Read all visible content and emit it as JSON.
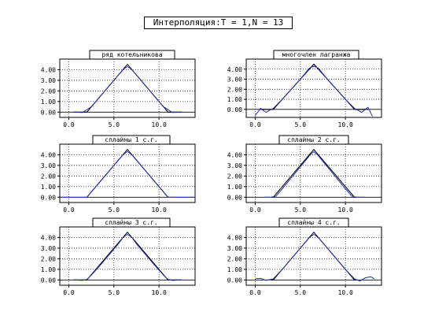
{
  "window": {
    "title": "Интерполяция:T = 1,N = 13"
  },
  "colors": {
    "background": "#ffffff",
    "frame": "#000000",
    "interpolant": "#1f2fb0",
    "reference": "#000000",
    "grid": "#000000"
  },
  "chart_data": [
    {
      "type": "line",
      "title": "ряд котельникова",
      "xlim": [
        -1,
        14
      ],
      "ylim": [
        -0.5,
        5
      ],
      "xticks": [
        0,
        5,
        10
      ],
      "xtick_labels": [
        "0.0",
        "5.0",
        "10.0"
      ],
      "yticks": [
        0,
        1,
        2,
        3,
        4
      ],
      "ytick_labels": [
        "0.00",
        "1.00",
        "2.00",
        "3.00",
        "4.00"
      ],
      "grid": "dotted",
      "series": [
        {
          "role": "reference",
          "x": [
            0.5,
            1.8,
            2.0,
            6.5,
            11.0,
            11.2,
            12.5
          ],
          "y": [
            0,
            0,
            0,
            4.5,
            0,
            0,
            0
          ]
        },
        {
          "role": "interpolant",
          "x": [
            0.5,
            1.5,
            2.5,
            3.5,
            4.5,
            5.5,
            6.0,
            6.5,
            7.0,
            7.5,
            8.5,
            9.5,
            10.5,
            11.5,
            12.5
          ],
          "y": [
            0,
            -0.04,
            0.5,
            1.5,
            2.5,
            3.5,
            4.0,
            4.3,
            4.0,
            3.5,
            2.5,
            1.5,
            0.5,
            -0.04,
            0
          ]
        }
      ]
    },
    {
      "type": "line",
      "title": "многочлен лагранжа",
      "xlim": [
        -1,
        14
      ],
      "ylim": [
        -0.8,
        5
      ],
      "xticks": [
        0,
        5,
        10
      ],
      "xtick_labels": [
        "0.0",
        "5.0",
        "10.0"
      ],
      "yticks": [
        0,
        1,
        2,
        3,
        4
      ],
      "ytick_labels": [
        "0.00",
        "1.00",
        "2.00",
        "3.00",
        "4.00"
      ],
      "grid": "dotted",
      "series": [
        {
          "role": "reference",
          "x": [
            0.5,
            1.8,
            2.0,
            6.5,
            11.0,
            11.2,
            12.5
          ],
          "y": [
            0,
            0,
            0,
            4.5,
            0,
            0,
            0
          ]
        },
        {
          "role": "interpolant",
          "x": [
            0,
            0.6,
            1.2,
            2.0,
            3.0,
            4.0,
            5.0,
            6.0,
            6.5,
            7.0,
            8.0,
            9.0,
            10.0,
            11.0,
            11.8,
            12.5,
            13.0
          ],
          "y": [
            -0.6,
            0.1,
            -0.3,
            0.1,
            1.0,
            2.0,
            3.0,
            4.1,
            4.3,
            4.1,
            3.0,
            2.0,
            1.0,
            0.1,
            -0.3,
            0.2,
            -0.7
          ]
        }
      ]
    },
    {
      "type": "line",
      "title": "сплайны 1 с.г.",
      "xlim": [
        -1,
        14
      ],
      "ylim": [
        -0.5,
        5
      ],
      "xticks": [
        0,
        5,
        10
      ],
      "xtick_labels": [
        "0.0",
        "5.0",
        "10.0"
      ],
      "yticks": [
        0,
        1,
        2,
        3,
        4
      ],
      "ytick_labels": [
        "0.00",
        "1.00",
        "2.00",
        "3.00",
        "4.00"
      ],
      "grid": "dotted",
      "series": [
        {
          "role": "reference",
          "x": [
            2.0,
            6.5,
            11.0
          ],
          "y": [
            0,
            4.5,
            0
          ]
        },
        {
          "role": "interpolant",
          "x": [
            -1,
            1.5,
            2.0,
            6.0,
            6.5,
            7.0,
            11.0,
            11.5,
            14
          ],
          "y": [
            0,
            0,
            0,
            4.0,
            4.3,
            4.0,
            0,
            0,
            0
          ]
        }
      ]
    },
    {
      "type": "line",
      "title": "сплайны 2 с.г.",
      "xlim": [
        -1,
        14
      ],
      "ylim": [
        -0.5,
        5
      ],
      "xticks": [
        0,
        5,
        10
      ],
      "xtick_labels": [
        "0.0",
        "5.0",
        "10.0"
      ],
      "yticks": [
        0,
        1,
        2,
        3,
        4
      ],
      "ytick_labels": [
        "0.00",
        "1.00",
        "2.00",
        "3.00",
        "4.00"
      ],
      "grid": "dotted",
      "series": [
        {
          "role": "reference",
          "x": [
            1.8,
            2.0,
            6.5,
            11.0,
            11.2
          ],
          "y": [
            0,
            0,
            4.5,
            0,
            0
          ]
        },
        {
          "role": "interpolant",
          "x": [
            1.0,
            1.8,
            2.3,
            3.0,
            6.0,
            6.5,
            7.0,
            10.0,
            10.7,
            11.2,
            12.0
          ],
          "y": [
            0,
            0,
            0.1,
            0.8,
            3.9,
            4.3,
            3.9,
            0.8,
            0.1,
            0,
            0
          ]
        }
      ]
    },
    {
      "type": "line",
      "title": "сплайны 3 с.г.",
      "xlim": [
        -1,
        14
      ],
      "ylim": [
        -0.5,
        5
      ],
      "xticks": [
        0,
        5,
        10
      ],
      "xtick_labels": [
        "0.0",
        "5.0",
        "10.0"
      ],
      "yticks": [
        0,
        1,
        2,
        3,
        4
      ],
      "ytick_labels": [
        "0.00",
        "1.00",
        "2.00",
        "3.00",
        "4.00"
      ],
      "grid": "dotted",
      "series": [
        {
          "role": "reference",
          "x": [
            0.5,
            1.8,
            2.0,
            6.5,
            11.0,
            11.2,
            12.5
          ],
          "y": [
            0,
            0,
            0,
            4.5,
            0,
            0,
            0
          ]
        },
        {
          "role": "interpolant",
          "x": [
            0.5,
            1.5,
            2.0,
            2.5,
            3.5,
            5.5,
            6.0,
            6.5,
            7.0,
            7.5,
            9.5,
            10.5,
            11.0,
            11.5,
            12.5
          ],
          "y": [
            0,
            -0.05,
            0.05,
            0.45,
            1.4,
            3.4,
            4.0,
            4.3,
            4.0,
            3.4,
            1.4,
            0.45,
            0.05,
            -0.05,
            0
          ]
        }
      ]
    },
    {
      "type": "line",
      "title": "сплайны 4 с.г.",
      "xlim": [
        -1,
        14
      ],
      "ylim": [
        -0.5,
        5
      ],
      "xticks": [
        0,
        5,
        10
      ],
      "xtick_labels": [
        "0.0",
        "5.0",
        "10.0"
      ],
      "yticks": [
        0,
        1,
        2,
        3,
        4
      ],
      "ytick_labels": [
        "0.00",
        "1.00",
        "2.00",
        "3.00",
        "4.00"
      ],
      "grid": "dotted",
      "series": [
        {
          "role": "reference",
          "x": [
            1.8,
            2.0,
            6.5,
            11.0,
            11.2
          ],
          "y": [
            0,
            0,
            4.5,
            0,
            0
          ]
        },
        {
          "role": "interpolant",
          "x": [
            0,
            0.6,
            1.2,
            2.0,
            3.0,
            4.0,
            5.0,
            6.0,
            6.5,
            7.0,
            8.0,
            9.0,
            10.0,
            11.0,
            11.6,
            12.2,
            12.8,
            13.2
          ],
          "y": [
            0.1,
            0.15,
            -0.05,
            0.1,
            1.0,
            2.0,
            3.0,
            4.0,
            4.3,
            4.0,
            3.0,
            2.0,
            1.0,
            0.1,
            -0.1,
            0.2,
            0.3,
            0.1
          ]
        }
      ]
    }
  ]
}
